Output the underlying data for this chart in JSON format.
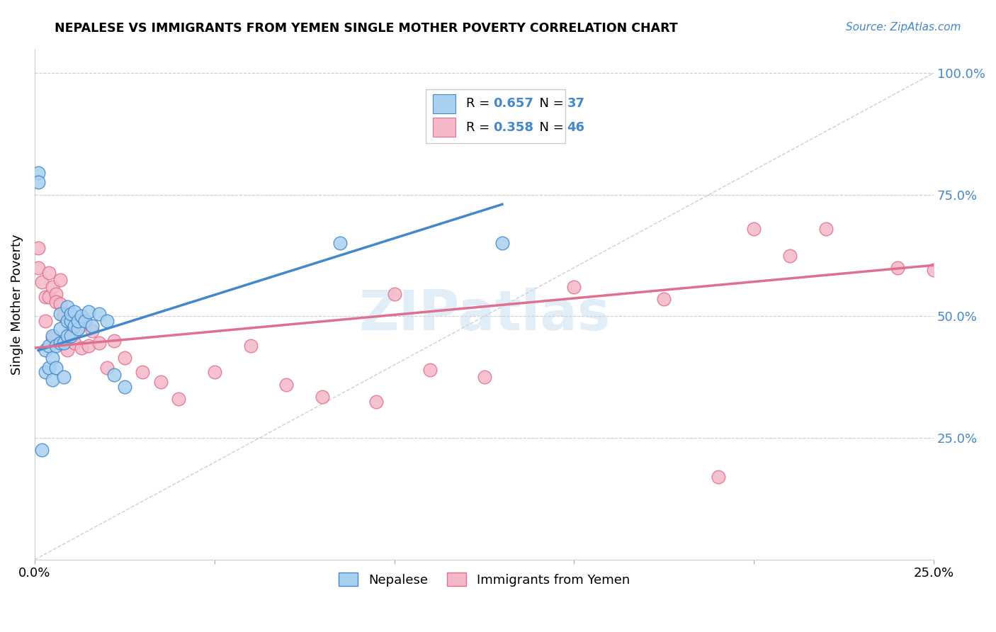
{
  "title": "NEPALESE VS IMMIGRANTS FROM YEMEN SINGLE MOTHER POVERTY CORRELATION CHART",
  "source": "Source: ZipAtlas.com",
  "ylabel": "Single Mother Poverty",
  "color_blue": "#A8D0F0",
  "color_pink": "#F5B8C8",
  "line_blue": "#4488CC",
  "line_pink": "#E07090",
  "line_gray": "#CCCCCC",
  "watermark": "ZIPatlas",
  "nepalese_x": [
    0.001,
    0.001,
    0.002,
    0.003,
    0.003,
    0.004,
    0.004,
    0.005,
    0.005,
    0.005,
    0.006,
    0.006,
    0.007,
    0.007,
    0.007,
    0.008,
    0.008,
    0.009,
    0.009,
    0.009,
    0.01,
    0.01,
    0.01,
    0.011,
    0.011,
    0.012,
    0.012,
    0.013,
    0.014,
    0.015,
    0.016,
    0.018,
    0.02,
    0.022,
    0.025,
    0.085,
    0.13
  ],
  "nepalese_y": [
    0.795,
    0.775,
    0.225,
    0.385,
    0.43,
    0.395,
    0.44,
    0.37,
    0.415,
    0.46,
    0.395,
    0.44,
    0.445,
    0.475,
    0.505,
    0.375,
    0.445,
    0.46,
    0.49,
    0.52,
    0.46,
    0.49,
    0.505,
    0.48,
    0.51,
    0.475,
    0.49,
    0.5,
    0.49,
    0.51,
    0.48,
    0.505,
    0.49,
    0.38,
    0.355,
    0.65,
    0.65
  ],
  "yemen_x": [
    0.001,
    0.001,
    0.002,
    0.003,
    0.003,
    0.004,
    0.004,
    0.005,
    0.005,
    0.006,
    0.006,
    0.007,
    0.007,
    0.008,
    0.008,
    0.009,
    0.01,
    0.011,
    0.012,
    0.013,
    0.014,
    0.015,
    0.016,
    0.018,
    0.02,
    0.022,
    0.025,
    0.03,
    0.035,
    0.04,
    0.05,
    0.06,
    0.07,
    0.08,
    0.095,
    0.1,
    0.11,
    0.125,
    0.15,
    0.175,
    0.19,
    0.2,
    0.21,
    0.22,
    0.24,
    0.25
  ],
  "yemen_y": [
    0.6,
    0.64,
    0.57,
    0.54,
    0.49,
    0.54,
    0.59,
    0.455,
    0.56,
    0.545,
    0.53,
    0.525,
    0.575,
    0.5,
    0.505,
    0.43,
    0.47,
    0.445,
    0.475,
    0.435,
    0.49,
    0.44,
    0.47,
    0.445,
    0.395,
    0.45,
    0.415,
    0.385,
    0.365,
    0.33,
    0.385,
    0.44,
    0.36,
    0.335,
    0.325,
    0.545,
    0.39,
    0.375,
    0.56,
    0.535,
    0.17,
    0.68,
    0.625,
    0.68,
    0.6,
    0.595
  ],
  "xlim": [
    0,
    0.25
  ],
  "ylim": [
    0,
    1.05
  ],
  "blue_line_x": [
    0.001,
    0.13
  ],
  "blue_line_y": [
    0.43,
    0.73
  ],
  "pink_line_x": [
    0.0,
    0.25
  ],
  "pink_line_y": [
    0.435,
    0.605
  ]
}
